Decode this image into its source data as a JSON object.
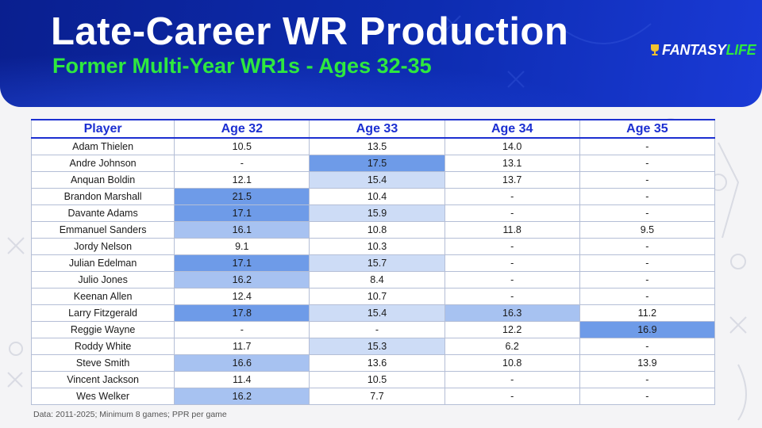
{
  "header": {
    "title": "Late-Career WR Production",
    "subtitle": "Former Multi-Year WR1s - Ages 32-35",
    "logo_text_1": "FANTASY",
    "logo_text_2": "LIFE"
  },
  "colors": {
    "banner": "#0d2cb0",
    "subtitle": "#2ee83f",
    "header_text": "#1c2fd1",
    "highlight_dark": "#6e9be8",
    "highlight_mid": "#a7c2f1",
    "highlight_light": "#cddcf6"
  },
  "chart_data": {
    "type": "table",
    "columns": [
      "Player",
      "Age 32",
      "Age 33",
      "Age 34",
      "Age 35"
    ],
    "rows": [
      [
        "Adam Thielen",
        "10.5",
        "13.5",
        "14.0",
        "-"
      ],
      [
        "Andre Johnson",
        "-",
        "17.5",
        "13.1",
        "-"
      ],
      [
        "Anquan Boldin",
        "12.1",
        "15.4",
        "13.7",
        "-"
      ],
      [
        "Brandon Marshall",
        "21.5",
        "10.4",
        "-",
        "-"
      ],
      [
        "Davante Adams",
        "17.1",
        "15.9",
        "-",
        "-"
      ],
      [
        "Emmanuel Sanders",
        "16.1",
        "10.8",
        "11.8",
        "9.5"
      ],
      [
        "Jordy Nelson",
        "9.1",
        "10.3",
        "-",
        "-"
      ],
      [
        "Julian Edelman",
        "17.1",
        "15.7",
        "-",
        "-"
      ],
      [
        "Julio Jones",
        "16.2",
        "8.4",
        "-",
        "-"
      ],
      [
        "Keenan Allen",
        "12.4",
        "10.7",
        "-",
        "-"
      ],
      [
        "Larry Fitzgerald",
        "17.8",
        "15.4",
        "16.3",
        "11.2"
      ],
      [
        "Reggie Wayne",
        "-",
        "-",
        "12.2",
        "16.9"
      ],
      [
        "Roddy White",
        "11.7",
        "15.3",
        "6.2",
        "-"
      ],
      [
        "Steve Smith",
        "16.6",
        "13.6",
        "10.8",
        "13.9"
      ],
      [
        "Vincent Jackson",
        "11.4",
        "10.5",
        "-",
        "-"
      ],
      [
        "Wes Welker",
        "16.2",
        "7.7",
        "-",
        "-"
      ]
    ],
    "highlight_threshold_note": "cells shaded by value: darker blue = higher PPR per game"
  },
  "footnote": "Data: 2011-2025; Minimum 8 games; PPR per game"
}
